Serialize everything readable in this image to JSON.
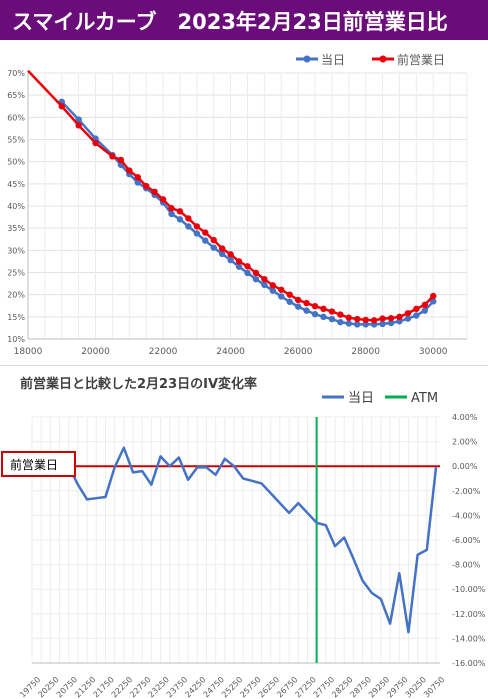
{
  "header": {
    "title": "スマイルカーブ　2023年2月23日前営業日比"
  },
  "chart_data": [
    {
      "type": "line",
      "title": "",
      "legend_position": "top-right",
      "xlim": [
        18000,
        31000
      ],
      "ylim": [
        10,
        70
      ],
      "x_ticks": [
        "18000",
        "20000",
        "22000",
        "24000",
        "26000",
        "28000",
        "30000"
      ],
      "y_ticks": [
        "10%",
        "15%",
        "20%",
        "25%",
        "30%",
        "35%",
        "40%",
        "45%",
        "50%",
        "55%",
        "60%",
        "65%",
        "70%"
      ],
      "grid": true,
      "series": [
        {
          "name": "当日",
          "color": "#4472c4",
          "x": [
            19000,
            19500,
            20000,
            20500,
            20750,
            21000,
            21250,
            21500,
            21750,
            22000,
            22250,
            22500,
            22750,
            23000,
            23250,
            23500,
            23750,
            24000,
            24250,
            24500,
            24750,
            25000,
            25250,
            25500,
            25750,
            26000,
            26250,
            26500,
            26750,
            27000,
            27250,
            27500,
            27750,
            28000,
            28250,
            28500,
            28750,
            29000,
            29250,
            29500,
            29750,
            30000
          ],
          "y": [
            63.5,
            59.5,
            55.2,
            51.5,
            49.3,
            47.2,
            45.3,
            44.0,
            42.5,
            40.8,
            38.2,
            37.0,
            35.4,
            33.8,
            32.2,
            30.6,
            29.2,
            27.8,
            26.3,
            24.9,
            23.5,
            22.2,
            20.9,
            19.6,
            18.4,
            17.3,
            16.4,
            15.6,
            15.0,
            14.5,
            13.8,
            13.5,
            13.3,
            13.3,
            13.3,
            13.4,
            13.6,
            14.0,
            14.6,
            15.3,
            16.4,
            18.5
          ]
        },
        {
          "name": "前営業日",
          "color": "#e8000b",
          "x": [
            18000,
            19000,
            19500,
            20000,
            20500,
            20750,
            21000,
            21250,
            21500,
            21750,
            22000,
            22250,
            22500,
            22750,
            23000,
            23250,
            23500,
            23750,
            24000,
            24250,
            24500,
            24750,
            25000,
            25250,
            25500,
            25750,
            26000,
            26250,
            26500,
            26750,
            27000,
            27250,
            27500,
            27750,
            28000,
            28250,
            28500,
            28750,
            29000,
            29250,
            29500,
            29750,
            30000
          ],
          "y": [
            70.5,
            62.5,
            58.2,
            54.2,
            51.2,
            50.4,
            48.0,
            46.5,
            44.5,
            43.2,
            41.5,
            39.5,
            38.8,
            37.2,
            35.4,
            34.0,
            32.3,
            30.4,
            29.1,
            27.5,
            26.4,
            24.9,
            23.5,
            22.1,
            21.1,
            20.0,
            18.8,
            18.1,
            17.4,
            16.8,
            16.2,
            15.5,
            14.8,
            14.5,
            14.3,
            14.2,
            14.6,
            14.7,
            15.0,
            15.8,
            16.8,
            17.7,
            19.7
          ]
        }
      ]
    },
    {
      "type": "line",
      "title": "前営業日と比較した2月23日のIV変化率",
      "legend_position": "top-right",
      "ylim": [
        -16,
        4
      ],
      "y_ticks": [
        "4.00%",
        "2.00%",
        "0.00%",
        "-2.00%",
        "-4.00%",
        "-6.00%",
        "-8.00%",
        "-10.00%",
        "-12.00%",
        "-14.00%",
        "-16.00%"
      ],
      "y_axis_side": "right",
      "x_ticks": [
        "19750",
        "20250",
        "20750",
        "21250",
        "21750",
        "22250",
        "22750",
        "23250",
        "23750",
        "24250",
        "24750",
        "25250",
        "25750",
        "26250",
        "26750",
        "27250",
        "27750",
        "28250",
        "28750",
        "29250",
        "29750",
        "30250",
        "30750"
      ],
      "grid": true,
      "annotation": "前営業日",
      "atm_x": 27500,
      "series": [
        {
          "name": "当日",
          "color": "#4472c4",
          "x": [
            20750,
            21000,
            21250,
            21500,
            21750,
            22000,
            22250,
            22500,
            22750,
            23000,
            23250,
            23500,
            23750,
            24000,
            24250,
            24500,
            24750,
            25000,
            25250,
            25500,
            25750,
            26000,
            26250,
            26500,
            26750,
            27000,
            27250,
            27500,
            27750,
            28000,
            28250,
            28500,
            28750,
            29000,
            29250,
            29500,
            29750,
            30000,
            30250,
            30500,
            30750
          ],
          "y": [
            0.0,
            -1.5,
            -2.7,
            -2.6,
            -2.5,
            -0.1,
            1.5,
            -0.5,
            -0.4,
            -1.5,
            0.8,
            0.0,
            0.7,
            -1.1,
            -0.1,
            -0.1,
            -0.7,
            0.6,
            0.0,
            -1.0,
            -1.2,
            -1.4,
            -2.2,
            -3.0,
            -3.8,
            -3.0,
            -3.8,
            -4.6,
            -4.8,
            -6.5,
            -5.8,
            -7.5,
            -9.3,
            -10.3,
            -10.8,
            -12.8,
            -8.7,
            -13.5,
            -7.2,
            -6.8,
            -0.1
          ]
        },
        {
          "name": "ATM",
          "color": "#00b050"
        }
      ]
    }
  ]
}
